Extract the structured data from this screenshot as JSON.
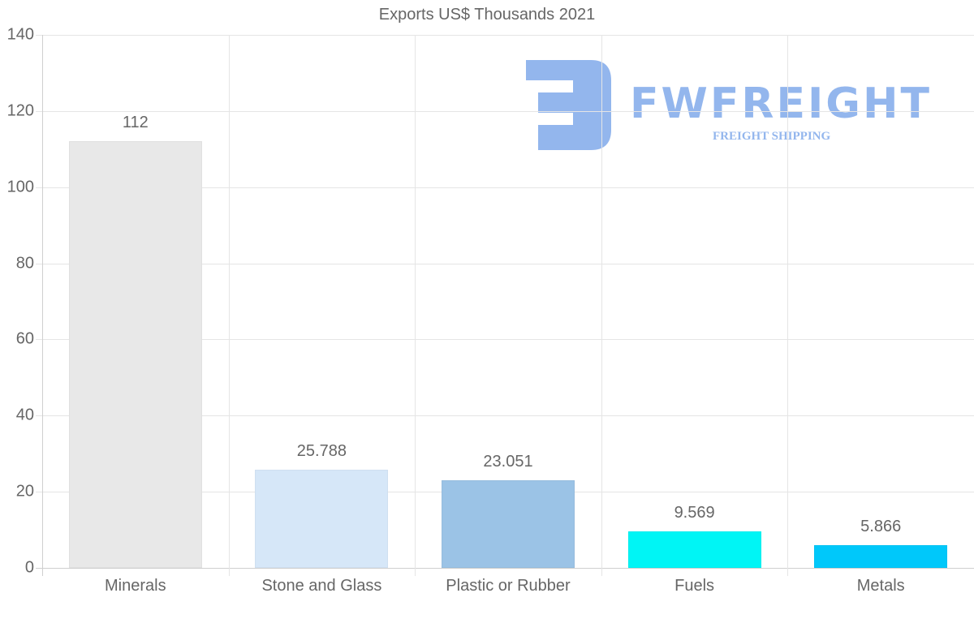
{
  "chart_data": {
    "type": "bar",
    "title": "Exports US$ Thousands 2021",
    "xlabel": "",
    "ylabel": "",
    "categories": [
      "Minerals",
      "Stone and Glass",
      "Plastic or Rubber",
      "Fuels",
      "Metals"
    ],
    "values": [
      112,
      25.788,
      23.051,
      9.569,
      5.866
    ],
    "value_labels": [
      "112",
      "25.788",
      "23.051",
      "9.569",
      "5.866"
    ],
    "colors": [
      "#e8e8e8",
      "#d6e7f8",
      "#9bc3e6",
      "#00f5f5",
      "#00c8fa"
    ],
    "ylim": [
      0,
      140
    ],
    "yticks": [
      "0",
      "20",
      "40",
      "60",
      "80",
      "100",
      "120",
      "140"
    ],
    "grid": true,
    "legend": "none",
    "data_labels": true
  },
  "watermark": {
    "brand": "FWFREIGHT",
    "tagline": "FREIGHT SHIPPING",
    "color": "#3b7be0"
  }
}
